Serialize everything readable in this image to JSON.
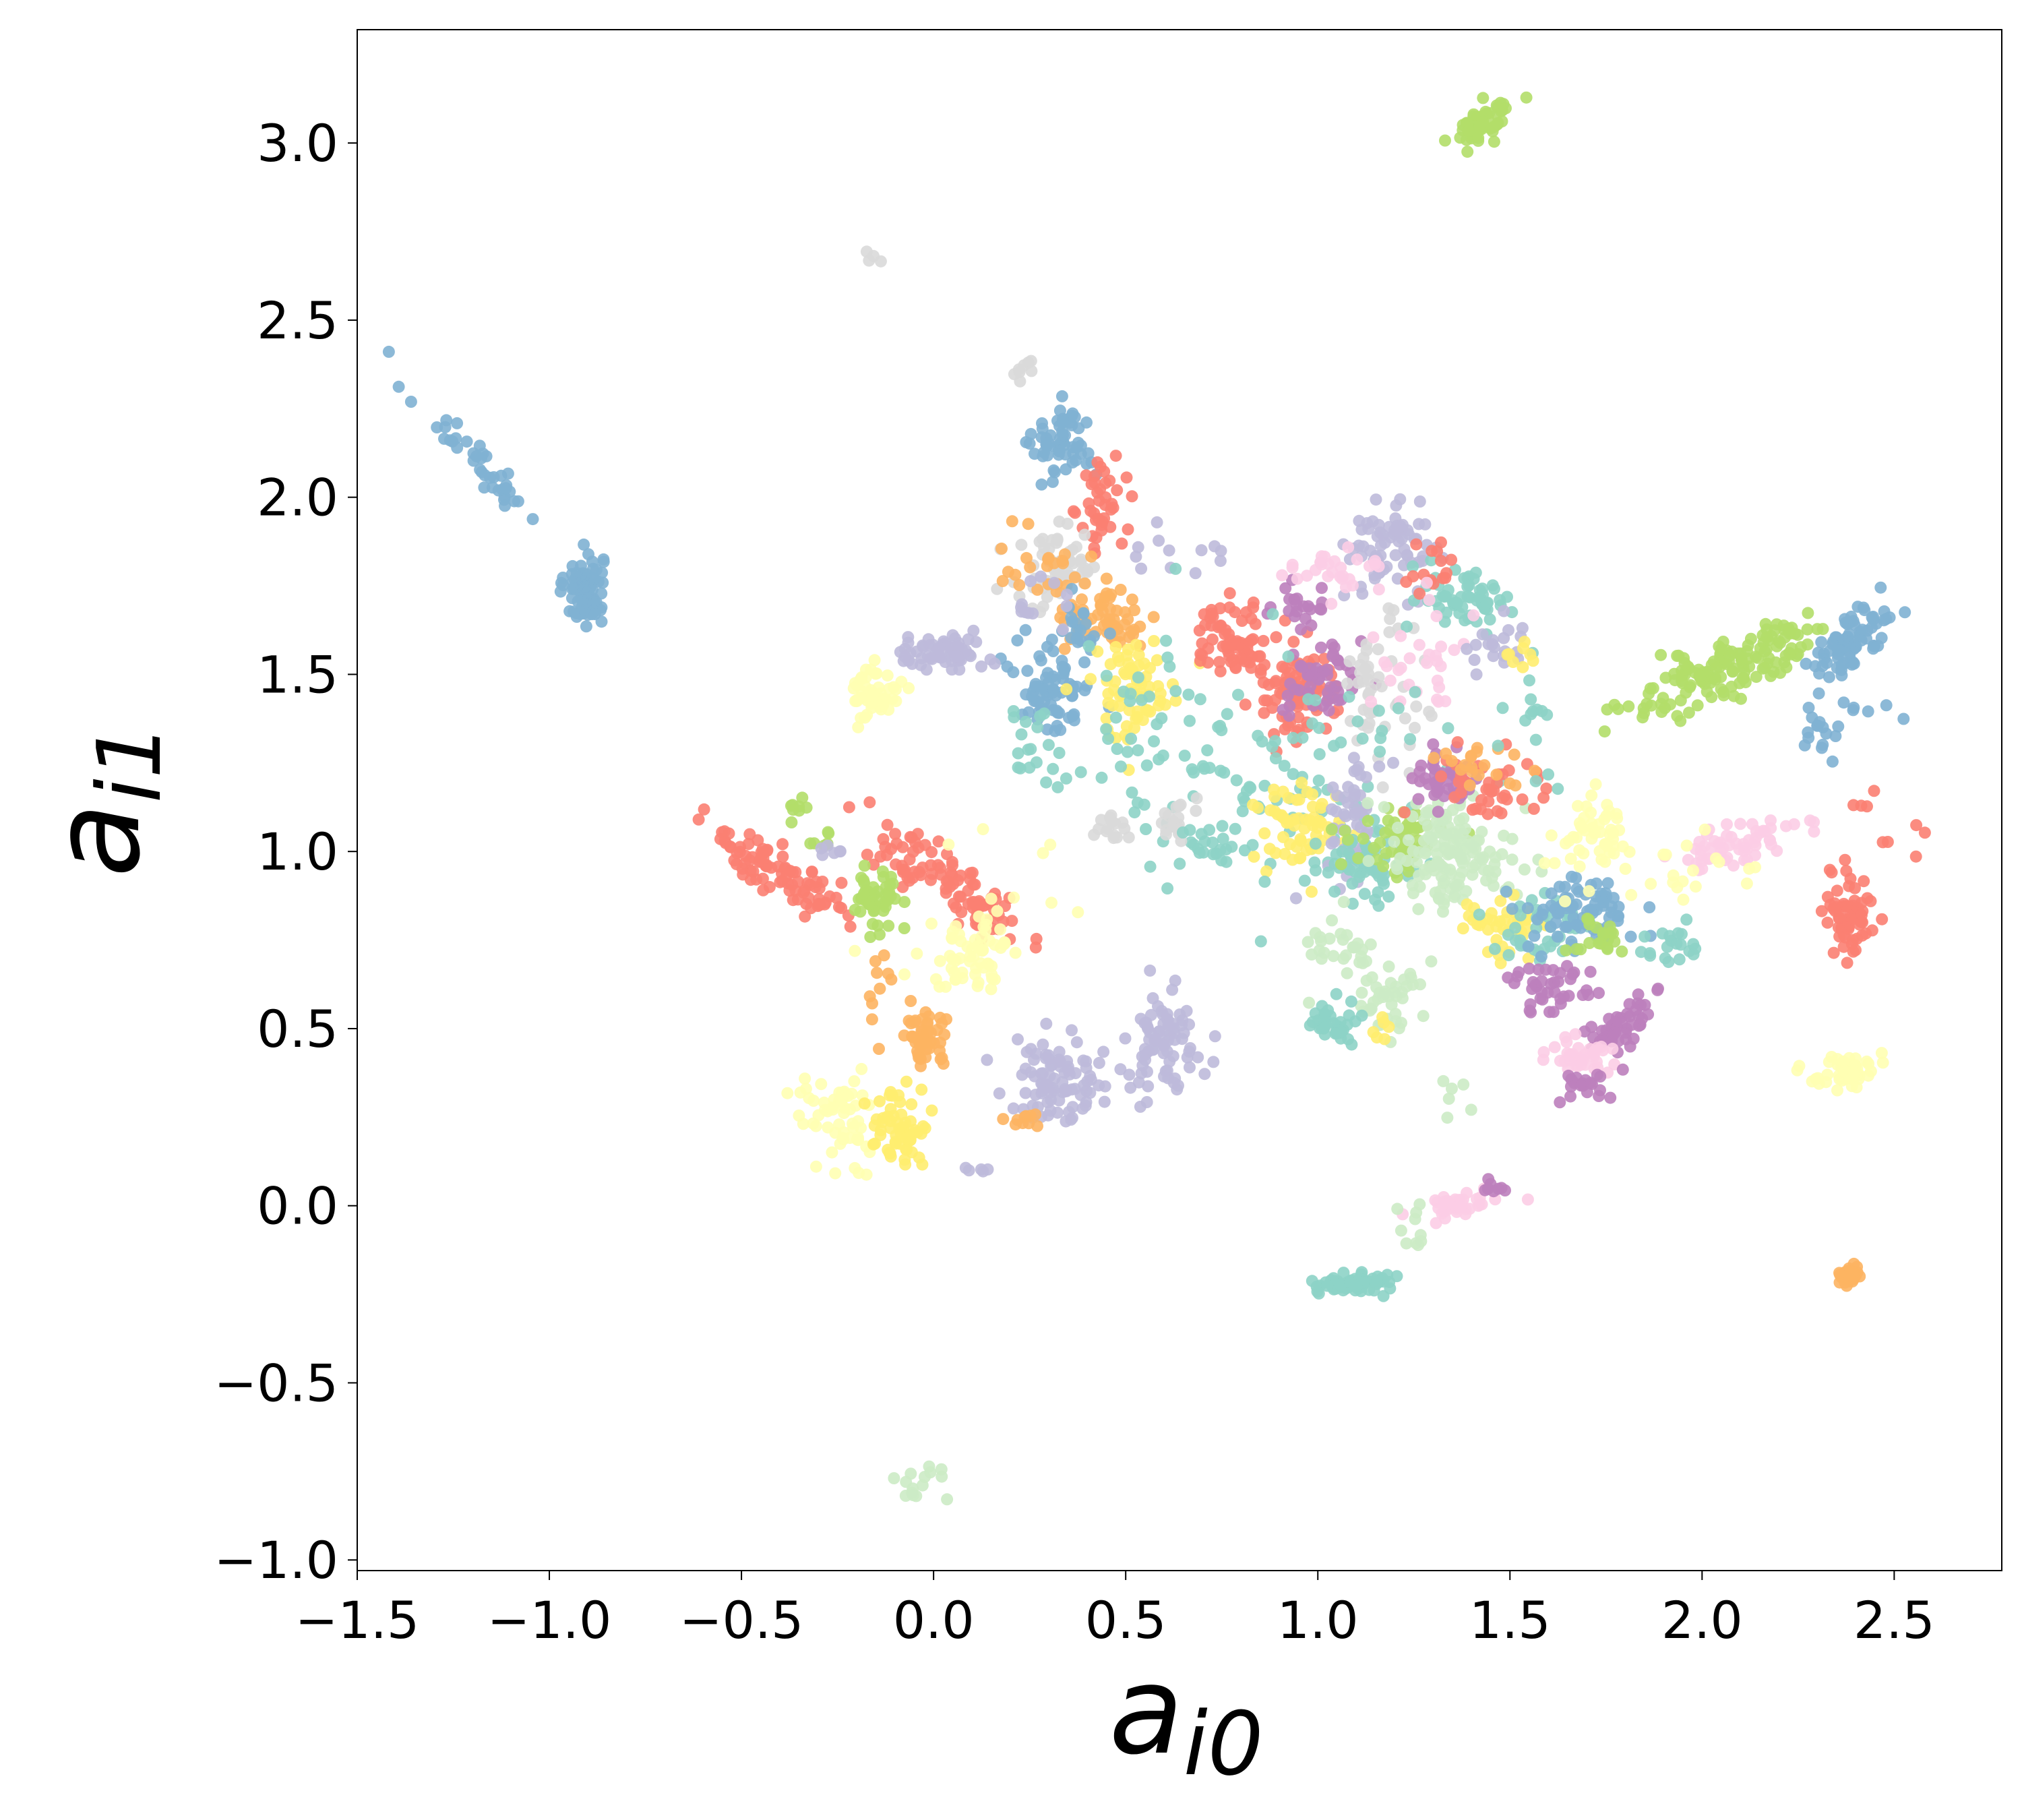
{
  "chart_data": {
    "type": "scatter",
    "title": "",
    "xlabel": "a",
    "xlabel_sub": "i0",
    "ylabel": "a",
    "ylabel_sub": "i1",
    "xlim": [
      -1.5,
      2.78
    ],
    "ylim": [
      -1.03,
      3.32
    ],
    "xticks": [
      -1.5,
      -1.0,
      -0.5,
      0.0,
      0.5,
      1.0,
      1.5,
      2.0,
      2.5
    ],
    "xtick_labels": [
      "−1.5",
      "−1.0",
      "−0.5",
      "0.0",
      "0.5",
      "1.0",
      "1.5",
      "2.0",
      "2.5"
    ],
    "yticks": [
      -1.0,
      -0.5,
      0.0,
      0.5,
      1.0,
      1.5,
      2.0,
      2.5,
      3.0
    ],
    "ytick_labels": [
      "−1.0",
      "−0.5",
      "0.0",
      "0.5",
      "1.0",
      "1.5",
      "2.0",
      "2.5",
      "3.0"
    ],
    "grid": false,
    "legend": "none",
    "palette": {
      "teal": "#8dd3c7",
      "lightyellow": "#ffffb3",
      "lavender": "#bebada",
      "salmon": "#fb8072",
      "blue": "#80b1d3",
      "orange": "#fdb462",
      "green": "#b3de69",
      "pink": "#fccde5",
      "gray": "#d9d9d9",
      "purple": "#bc80bd",
      "mint": "#ccebc5",
      "yellow": "#ffed6f"
    },
    "clusters": [
      {
        "color": "blue",
        "cx": -1.2,
        "cy": 2.12,
        "sx": 0.09,
        "sy": 0.1,
        "n": 40,
        "rho": -0.95
      },
      {
        "color": "blue",
        "cx": -0.91,
        "cy": 1.74,
        "sx": 0.025,
        "sy": 0.05,
        "n": 90,
        "rho": 0
      },
      {
        "color": "green",
        "cx": 1.43,
        "cy": 3.06,
        "sx": 0.035,
        "sy": 0.03,
        "n": 60,
        "rho": 0.5
      },
      {
        "color": "gray",
        "cx": -0.17,
        "cy": 2.68,
        "sx": 0.03,
        "sy": 0.015,
        "n": 4,
        "rho": 0
      },
      {
        "color": "gray",
        "cx": 0.24,
        "cy": 2.37,
        "sx": 0.02,
        "sy": 0.03,
        "n": 8,
        "rho": 0.5
      },
      {
        "color": "blue",
        "cx": 0.34,
        "cy": 2.15,
        "sx": 0.04,
        "sy": 0.05,
        "n": 60,
        "rho": 0
      },
      {
        "color": "salmon",
        "cx": 0.44,
        "cy": 1.98,
        "sx": 0.03,
        "sy": 0.07,
        "n": 40,
        "rho": 0
      },
      {
        "color": "gray",
        "cx": 0.32,
        "cy": 1.8,
        "sx": 0.06,
        "sy": 0.07,
        "n": 60,
        "rho": 0
      },
      {
        "color": "orange",
        "cx": 0.28,
        "cy": 1.82,
        "sx": 0.07,
        "sy": 0.04,
        "n": 20,
        "rho": 0
      },
      {
        "color": "orange",
        "cx": 0.45,
        "cy": 1.66,
        "sx": 0.07,
        "sy": 0.05,
        "n": 60,
        "rho": 0
      },
      {
        "color": "blue",
        "cx": 0.31,
        "cy": 1.47,
        "sx": 0.05,
        "sy": 0.07,
        "n": 70,
        "rho": 0
      },
      {
        "color": "blue",
        "cx": 0.38,
        "cy": 1.62,
        "sx": 0.03,
        "sy": 0.04,
        "n": 20,
        "rho": 0
      },
      {
        "color": "yellow",
        "cx": 0.52,
        "cy": 1.46,
        "sx": 0.06,
        "sy": 0.07,
        "n": 70,
        "rho": 0
      },
      {
        "color": "teal",
        "cx": 0.26,
        "cy": 1.3,
        "sx": 0.04,
        "sy": 0.06,
        "n": 20,
        "rho": 0
      },
      {
        "color": "lavender",
        "cx": 0.02,
        "cy": 1.56,
        "sx": 0.06,
        "sy": 0.025,
        "n": 60,
        "rho": 0
      },
      {
        "color": "lightyellow",
        "cx": -0.15,
        "cy": 1.45,
        "sx": 0.03,
        "sy": 0.04,
        "n": 50,
        "rho": 0
      },
      {
        "color": "lavender",
        "cx": 0.65,
        "cy": 1.85,
        "sx": 0.06,
        "sy": 0.05,
        "n": 12,
        "rho": 0
      },
      {
        "color": "salmon",
        "cx": 0.78,
        "cy": 1.6,
        "sx": 0.06,
        "sy": 0.05,
        "n": 70,
        "rho": 0
      },
      {
        "color": "salmon",
        "cx": 0.95,
        "cy": 1.45,
        "sx": 0.06,
        "sy": 0.06,
        "n": 90,
        "rho": 0
      },
      {
        "color": "purple",
        "cx": 1.02,
        "cy": 1.48,
        "sx": 0.05,
        "sy": 0.06,
        "n": 50,
        "rho": 0
      },
      {
        "color": "purple",
        "cx": 0.95,
        "cy": 1.7,
        "sx": 0.04,
        "sy": 0.04,
        "n": 20,
        "rho": 0
      },
      {
        "color": "gray",
        "cx": 1.15,
        "cy": 1.45,
        "sx": 0.05,
        "sy": 0.1,
        "n": 50,
        "rho": 0
      },
      {
        "color": "lavender",
        "cx": 1.2,
        "cy": 1.86,
        "sx": 0.06,
        "sy": 0.06,
        "n": 70,
        "rho": 0
      },
      {
        "color": "pink",
        "cx": 1.04,
        "cy": 1.79,
        "sx": 0.06,
        "sy": 0.04,
        "n": 30,
        "rho": 0
      },
      {
        "color": "teal",
        "cx": 1.38,
        "cy": 1.72,
        "sx": 0.06,
        "sy": 0.05,
        "n": 60,
        "rho": 0
      },
      {
        "color": "salmon",
        "cx": 1.29,
        "cy": 1.8,
        "sx": 0.03,
        "sy": 0.03,
        "n": 15,
        "rho": 0
      },
      {
        "color": "pink",
        "cx": 1.3,
        "cy": 1.55,
        "sx": 0.08,
        "sy": 0.08,
        "n": 30,
        "rho": 0
      },
      {
        "color": "lavender",
        "cx": 1.46,
        "cy": 1.58,
        "sx": 0.05,
        "sy": 0.05,
        "n": 20,
        "rho": 0
      },
      {
        "color": "teal",
        "cx": 0.95,
        "cy": 1.2,
        "sx": 0.2,
        "sy": 0.15,
        "n": 90,
        "rho": 0
      },
      {
        "color": "teal",
        "cx": 0.55,
        "cy": 1.3,
        "sx": 0.12,
        "sy": 0.15,
        "n": 40,
        "rho": 0
      },
      {
        "color": "yellow",
        "cx": 0.95,
        "cy": 1.07,
        "sx": 0.06,
        "sy": 0.06,
        "n": 60,
        "rho": 0
      },
      {
        "color": "lavender",
        "cx": 1.1,
        "cy": 1.12,
        "sx": 0.04,
        "sy": 0.09,
        "n": 50,
        "rho": 0
      },
      {
        "color": "teal",
        "cx": 1.11,
        "cy": 0.95,
        "sx": 0.06,
        "sy": 0.04,
        "n": 60,
        "rho": 0
      },
      {
        "color": "green",
        "cx": 1.22,
        "cy": 1.03,
        "sx": 0.07,
        "sy": 0.05,
        "n": 50,
        "rho": 0
      },
      {
        "color": "mint",
        "cx": 1.32,
        "cy": 1.01,
        "sx": 0.07,
        "sy": 0.08,
        "n": 100,
        "rho": 0
      },
      {
        "color": "purple",
        "cx": 1.33,
        "cy": 1.2,
        "sx": 0.05,
        "sy": 0.04,
        "n": 50,
        "rho": 0
      },
      {
        "color": "salmon",
        "cx": 1.45,
        "cy": 1.18,
        "sx": 0.07,
        "sy": 0.07,
        "n": 40,
        "rho": 0
      },
      {
        "color": "orange",
        "cx": 1.4,
        "cy": 1.25,
        "sx": 0.07,
        "sy": 0.04,
        "n": 20,
        "rho": 0
      },
      {
        "color": "mint",
        "cx": 1.42,
        "cy": 0.95,
        "sx": 0.08,
        "sy": 0.07,
        "n": 40,
        "rho": 0
      },
      {
        "color": "yellow",
        "cx": 1.48,
        "cy": 0.77,
        "sx": 0.07,
        "sy": 0.05,
        "n": 40,
        "rho": 0
      },
      {
        "color": "teal",
        "cx": 1.58,
        "cy": 0.78,
        "sx": 0.07,
        "sy": 0.06,
        "n": 40,
        "rho": 0
      },
      {
        "color": "blue",
        "cx": 1.68,
        "cy": 0.82,
        "sx": 0.07,
        "sy": 0.05,
        "n": 80,
        "rho": 0
      },
      {
        "color": "green",
        "cx": 1.73,
        "cy": 0.76,
        "sx": 0.04,
        "sy": 0.03,
        "n": 20,
        "rho": 0
      },
      {
        "color": "teal",
        "cx": 1.9,
        "cy": 0.73,
        "sx": 0.06,
        "sy": 0.03,
        "n": 20,
        "rho": 0
      },
      {
        "color": "lightyellow",
        "cx": 1.73,
        "cy": 1.05,
        "sx": 0.05,
        "sy": 0.05,
        "n": 50,
        "rho": 0
      },
      {
        "color": "teal",
        "cx": 1.56,
        "cy": 1.4,
        "sx": 0.03,
        "sy": 0.1,
        "n": 15,
        "rho": 0
      },
      {
        "color": "yellow",
        "cx": 1.52,
        "cy": 1.53,
        "sx": 0.02,
        "sy": 0.03,
        "n": 8,
        "rho": 0
      },
      {
        "color": "pink",
        "cx": 2.08,
        "cy": 1.02,
        "sx": 0.09,
        "sy": 0.04,
        "n": 60,
        "rho": 0.6
      },
      {
        "color": "lightyellow",
        "cx": 1.93,
        "cy": 0.92,
        "sx": 0.15,
        "sy": 0.05,
        "n": 20,
        "rho": 0
      },
      {
        "color": "green",
        "cx": 2.05,
        "cy": 1.5,
        "sx": 0.12,
        "sy": 0.06,
        "n": 110,
        "rho": 0.7
      },
      {
        "color": "green",
        "cx": 2.2,
        "cy": 1.6,
        "sx": 0.05,
        "sy": 0.04,
        "n": 40,
        "rho": 0.5
      },
      {
        "color": "blue",
        "cx": 2.37,
        "cy": 1.58,
        "sx": 0.05,
        "sy": 0.05,
        "n": 80,
        "rho": 0.7
      },
      {
        "color": "blue",
        "cx": 2.3,
        "cy": 1.32,
        "sx": 0.04,
        "sy": 0.05,
        "n": 15,
        "rho": 0
      },
      {
        "color": "blue",
        "cx": 2.43,
        "cy": 1.42,
        "sx": 0.04,
        "sy": 0.03,
        "n": 6,
        "rho": 0
      },
      {
        "color": "salmon",
        "cx": 2.39,
        "cy": 0.83,
        "sx": 0.03,
        "sy": 0.06,
        "n": 70,
        "rho": 0
      },
      {
        "color": "salmon",
        "cx": 2.53,
        "cy": 1.04,
        "sx": 0.04,
        "sy": 0.03,
        "n": 5,
        "rho": 0
      },
      {
        "color": "salmon",
        "cx": 2.4,
        "cy": 1.14,
        "sx": 0.02,
        "sy": 0.02,
        "n": 4,
        "rho": 0
      },
      {
        "color": "lightyellow",
        "cx": 2.38,
        "cy": 0.38,
        "sx": 0.04,
        "sy": 0.025,
        "n": 50,
        "rho": 0
      },
      {
        "color": "purple",
        "cx": 1.79,
        "cy": 0.51,
        "sx": 0.05,
        "sy": 0.04,
        "n": 50,
        "rho": 0.6
      },
      {
        "color": "pink",
        "cx": 1.67,
        "cy": 0.42,
        "sx": 0.04,
        "sy": 0.03,
        "n": 40,
        "rho": 0
      },
      {
        "color": "purple",
        "cx": 1.7,
        "cy": 0.35,
        "sx": 0.05,
        "sy": 0.03,
        "n": 20,
        "rho": 0
      },
      {
        "color": "purple",
        "cx": 1.6,
        "cy": 0.62,
        "sx": 0.05,
        "sy": 0.04,
        "n": 40,
        "rho": 0
      },
      {
        "color": "mint",
        "cx": 1.06,
        "cy": 0.72,
        "sx": 0.05,
        "sy": 0.05,
        "n": 30,
        "rho": 0
      },
      {
        "color": "mint",
        "cx": 1.18,
        "cy": 0.59,
        "sx": 0.05,
        "sy": 0.05,
        "n": 40,
        "rho": 0
      },
      {
        "color": "teal",
        "cx": 1.05,
        "cy": 0.52,
        "sx": 0.03,
        "sy": 0.03,
        "n": 40,
        "rho": 0
      },
      {
        "color": "yellow",
        "cx": 1.16,
        "cy": 0.5,
        "sx": 0.02,
        "sy": 0.02,
        "n": 6,
        "rho": 0
      },
      {
        "color": "mint",
        "cx": 1.36,
        "cy": 0.3,
        "sx": 0.03,
        "sy": 0.03,
        "n": 6,
        "rho": 0
      },
      {
        "color": "pink",
        "cx": 1.36,
        "cy": 0.0,
        "sx": 0.05,
        "sy": 0.025,
        "n": 40,
        "rho": 0.5
      },
      {
        "color": "purple",
        "cx": 1.45,
        "cy": 0.05,
        "sx": 0.02,
        "sy": 0.01,
        "n": 8,
        "rho": 0
      },
      {
        "color": "mint",
        "cx": 1.25,
        "cy": -0.06,
        "sx": 0.02,
        "sy": 0.04,
        "n": 10,
        "rho": 0
      },
      {
        "color": "teal",
        "cx": 1.1,
        "cy": -0.22,
        "sx": 0.05,
        "sy": 0.015,
        "n": 60,
        "rho": 0
      },
      {
        "color": "orange",
        "cx": 2.38,
        "cy": -0.2,
        "sx": 0.012,
        "sy": 0.012,
        "n": 40,
        "rho": 0
      },
      {
        "color": "mint",
        "cx": -0.02,
        "cy": -0.78,
        "sx": 0.03,
        "sy": 0.03,
        "n": 15,
        "rho": 0
      },
      {
        "color": "salmon",
        "cx": -0.42,
        "cy": 0.95,
        "sx": 0.09,
        "sy": 0.07,
        "n": 90,
        "rho": -0.85
      },
      {
        "color": "salmon",
        "cx": 0.03,
        "cy": 0.92,
        "sx": 0.1,
        "sy": 0.08,
        "n": 100,
        "rho": -0.85
      },
      {
        "color": "green",
        "cx": -0.14,
        "cy": 0.87,
        "sx": 0.03,
        "sy": 0.04,
        "n": 50,
        "rho": 0
      },
      {
        "color": "green",
        "cx": -0.36,
        "cy": 1.12,
        "sx": 0.02,
        "sy": 0.02,
        "n": 8,
        "rho": 0
      },
      {
        "color": "green",
        "cx": -0.3,
        "cy": 1.03,
        "sx": 0.03,
        "sy": 0.01,
        "n": 6,
        "rho": 0
      },
      {
        "color": "lavender",
        "cx": -0.25,
        "cy": 1.01,
        "sx": 0.03,
        "sy": 0.02,
        "n": 6,
        "rho": 0
      },
      {
        "color": "lightyellow",
        "cx": 0.1,
        "cy": 0.7,
        "sx": 0.06,
        "sy": 0.05,
        "n": 60,
        "rho": 0
      },
      {
        "color": "orange",
        "cx": -0.02,
        "cy": 0.48,
        "sx": 0.03,
        "sy": 0.04,
        "n": 50,
        "rho": 0
      },
      {
        "color": "orange",
        "cx": -0.13,
        "cy": 0.57,
        "sx": 0.03,
        "sy": 0.08,
        "n": 10,
        "rho": 0
      },
      {
        "color": "lightyellow",
        "cx": -0.24,
        "cy": 0.26,
        "sx": 0.05,
        "sy": 0.07,
        "n": 60,
        "rho": 0
      },
      {
        "color": "yellow",
        "cx": -0.08,
        "cy": 0.22,
        "sx": 0.04,
        "sy": 0.05,
        "n": 60,
        "rho": 0
      },
      {
        "color": "lavender",
        "cx": 0.31,
        "cy": 0.36,
        "sx": 0.06,
        "sy": 0.06,
        "n": 90,
        "rho": 0
      },
      {
        "color": "orange",
        "cx": 0.23,
        "cy": 0.24,
        "sx": 0.03,
        "sy": 0.01,
        "n": 10,
        "rho": 0
      },
      {
        "color": "lavender",
        "cx": 0.6,
        "cy": 0.47,
        "sx": 0.05,
        "sy": 0.07,
        "n": 80,
        "rho": 0
      },
      {
        "color": "lavender",
        "cx": 0.12,
        "cy": 0.1,
        "sx": 0.03,
        "sy": 0.01,
        "n": 5,
        "rho": 0
      },
      {
        "color": "gray",
        "cx": 0.46,
        "cy": 1.07,
        "sx": 0.02,
        "sy": 0.02,
        "n": 15,
        "rho": 0
      },
      {
        "color": "gray",
        "cx": 0.64,
        "cy": 1.1,
        "sx": 0.02,
        "sy": 0.03,
        "n": 20,
        "rho": 0
      },
      {
        "color": "teal",
        "cx": 0.72,
        "cy": 1.02,
        "sx": 0.05,
        "sy": 0.03,
        "n": 20,
        "rho": 0
      },
      {
        "color": "lightyellow",
        "cx": 0.2,
        "cy": 0.9,
        "sx": 0.15,
        "sy": 0.15,
        "n": 10,
        "rho": 0
      },
      {
        "color": "lavender",
        "cx": 0.28,
        "cy": 1.7,
        "sx": 0.05,
        "sy": 0.06,
        "n": 12,
        "rho": 0
      }
    ]
  }
}
